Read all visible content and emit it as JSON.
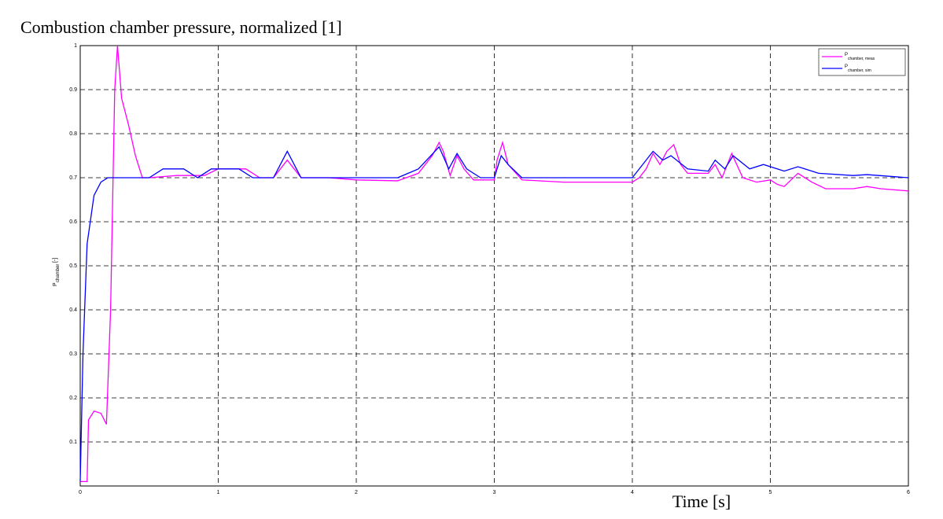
{
  "chart_data": {
    "type": "line",
    "title": "Combustion chamber pressure, normalized  [1]",
    "x_label": "Time [s]",
    "y_label": {
      "main": "P",
      "sub": "chamber",
      "unit": "[-]"
    },
    "xlim": [
      0,
      6
    ],
    "xticks": [
      0,
      1,
      2,
      3,
      4,
      5,
      6
    ],
    "ylim": [
      0,
      1
    ],
    "yticks": [
      0.1,
      0.2,
      0.3,
      0.4,
      0.5,
      0.6,
      0.7,
      0.8,
      0.9,
      1
    ],
    "grid": true,
    "legend": "top-right",
    "series": [
      {
        "name": "P",
        "name_sub": "chamber, meas",
        "color": "#ff00ff",
        "x": [
          0,
          0.05,
          0.06,
          0.1,
          0.15,
          0.19,
          0.22,
          0.25,
          0.27,
          0.3,
          0.35,
          0.4,
          0.45,
          0.5,
          0.7,
          0.9,
          1.0,
          1.2,
          1.3,
          1.4,
          1.45,
          1.5,
          1.55,
          1.6,
          1.8,
          2.0,
          2.3,
          2.45,
          2.55,
          2.6,
          2.63,
          2.68,
          2.73,
          2.78,
          2.85,
          3.0,
          3.02,
          3.06,
          3.1,
          3.2,
          3.5,
          4.0,
          4.05,
          4.1,
          4.15,
          4.2,
          4.25,
          4.3,
          4.35,
          4.4,
          4.55,
          4.6,
          4.65,
          4.72,
          4.8,
          4.9,
          5.0,
          5.05,
          5.1,
          5.2,
          5.3,
          5.4,
          5.6,
          5.7,
          5.8,
          6.0
        ],
        "values": [
          0.01,
          0.01,
          0.15,
          0.17,
          0.165,
          0.14,
          0.4,
          0.9,
          1.0,
          0.88,
          0.82,
          0.75,
          0.7,
          0.7,
          0.705,
          0.705,
          0.72,
          0.72,
          0.7,
          0.7,
          0.72,
          0.74,
          0.72,
          0.7,
          0.7,
          0.695,
          0.693,
          0.71,
          0.75,
          0.78,
          0.76,
          0.705,
          0.75,
          0.72,
          0.695,
          0.695,
          0.74,
          0.78,
          0.73,
          0.695,
          0.69,
          0.69,
          0.7,
          0.72,
          0.755,
          0.73,
          0.76,
          0.775,
          0.73,
          0.71,
          0.71,
          0.73,
          0.7,
          0.755,
          0.7,
          0.69,
          0.695,
          0.685,
          0.68,
          0.71,
          0.69,
          0.675,
          0.675,
          0.68,
          0.675,
          0.67
        ]
      },
      {
        "name": "P",
        "name_sub": "chamber, sim",
        "color": "#0000ff",
        "x": [
          0,
          0.02,
          0.05,
          0.1,
          0.15,
          0.2,
          0.5,
          0.6,
          0.75,
          0.85,
          0.95,
          1.15,
          1.25,
          1.4,
          1.45,
          1.5,
          1.55,
          1.6,
          2.3,
          2.45,
          2.6,
          2.67,
          2.73,
          2.8,
          2.9,
          3.0,
          3.05,
          3.1,
          3.2,
          4.0,
          4.1,
          4.15,
          4.22,
          4.28,
          4.4,
          4.55,
          4.6,
          4.67,
          4.73,
          4.85,
          4.95,
          5.05,
          5.1,
          5.2,
          5.35,
          5.6,
          5.7,
          6.0
        ],
        "values": [
          0.01,
          0.3,
          0.55,
          0.66,
          0.69,
          0.7,
          0.7,
          0.72,
          0.72,
          0.7,
          0.72,
          0.72,
          0.7,
          0.7,
          0.73,
          0.76,
          0.73,
          0.7,
          0.7,
          0.72,
          0.77,
          0.72,
          0.755,
          0.72,
          0.7,
          0.7,
          0.75,
          0.73,
          0.7,
          0.7,
          0.74,
          0.76,
          0.74,
          0.75,
          0.72,
          0.715,
          0.74,
          0.72,
          0.75,
          0.72,
          0.73,
          0.72,
          0.715,
          0.725,
          0.71,
          0.705,
          0.707,
          0.7
        ]
      }
    ]
  }
}
